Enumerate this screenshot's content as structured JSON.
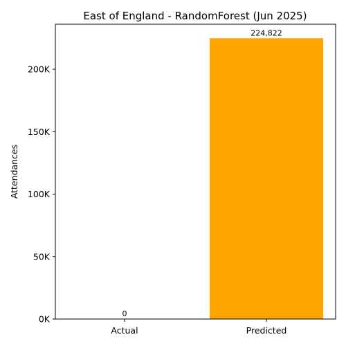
{
  "chart_data": {
    "type": "bar",
    "title": "East of England - RandomForest (Jun 2025)",
    "xlabel": "",
    "ylabel": "Attendances",
    "categories": [
      "Actual",
      "Predicted"
    ],
    "values": [
      0,
      224822
    ],
    "value_labels": [
      "0",
      "224,822"
    ],
    "bar_colors": [
      "#1f77b4",
      "#ffa500"
    ],
    "ylim": [
      0,
      236063
    ],
    "yticks": [
      0,
      50000,
      100000,
      150000,
      200000
    ],
    "ytick_labels": [
      "0K",
      "50K",
      "100K",
      "150K",
      "200K"
    ],
    "grid": false,
    "legend": "none"
  }
}
